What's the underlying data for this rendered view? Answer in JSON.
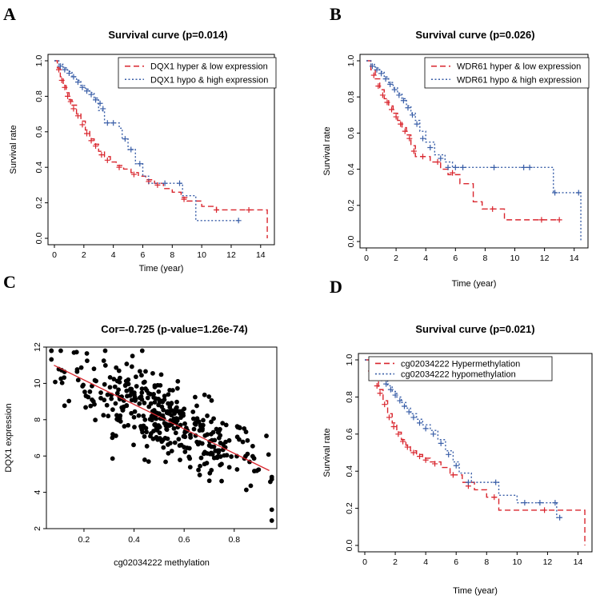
{
  "colors": {
    "red": "#d9262e",
    "blue": "#3a5fa8",
    "black": "#000000",
    "fit": "#d9262e"
  },
  "chart_data": [
    {
      "id": "A",
      "label": "A",
      "type": "line",
      "subtype": "kaplan-meier",
      "title": "Survival curve (p=0.014)",
      "xlabel": "Time (year)",
      "ylabel": "Survival rate",
      "xlim": [
        0,
        14.5
      ],
      "ylim": [
        0,
        1.0
      ],
      "xticks": [
        0,
        2,
        4,
        6,
        8,
        10,
        12,
        14
      ],
      "yticks": [
        0.0,
        0.2,
        0.4,
        0.6,
        0.8,
        1.0
      ],
      "legend_position": "top-right",
      "series": [
        {
          "name": "DQX1 hyper & low expression",
          "color": "red",
          "dash": "dashed",
          "x": [
            0,
            0.2,
            0.4,
            0.6,
            0.8,
            1.0,
            1.2,
            1.5,
            1.8,
            2.1,
            2.4,
            2.7,
            3.0,
            3.4,
            3.8,
            4.2,
            4.7,
            5.2,
            5.7,
            6.2,
            6.8,
            7.4,
            8.0,
            8.6,
            9.0,
            10.0,
            11.0,
            14.4,
            14.45
          ],
          "y": [
            1.0,
            0.96,
            0.91,
            0.86,
            0.82,
            0.78,
            0.75,
            0.7,
            0.66,
            0.61,
            0.56,
            0.53,
            0.49,
            0.46,
            0.43,
            0.41,
            0.39,
            0.37,
            0.35,
            0.33,
            0.31,
            0.28,
            0.26,
            0.23,
            0.21,
            0.18,
            0.16,
            0.16,
            0.0
          ],
          "censor_x": [
            0.3,
            0.5,
            0.7,
            0.9,
            1.1,
            1.3,
            1.6,
            1.9,
            2.2,
            2.5,
            2.8,
            3.2,
            3.6,
            4.4,
            5.4,
            6.4,
            7.0,
            8.8,
            11.0,
            13.2
          ],
          "censor_y": [
            0.95,
            0.89,
            0.85,
            0.8,
            0.77,
            0.73,
            0.69,
            0.64,
            0.59,
            0.55,
            0.52,
            0.47,
            0.44,
            0.4,
            0.36,
            0.32,
            0.3,
            0.22,
            0.16,
            0.16
          ]
        },
        {
          "name": "DQX1 hypo & high expression",
          "color": "blue",
          "dash": "dotted",
          "x": [
            0,
            0.3,
            0.6,
            0.9,
            1.2,
            1.5,
            1.8,
            2.1,
            2.4,
            2.7,
            3.0,
            3.4,
            4.4,
            4.6,
            5.0,
            5.5,
            6.0,
            6.4,
            8.7,
            9.0,
            9.6,
            12.5
          ],
          "y": [
            1.0,
            0.98,
            0.96,
            0.94,
            0.91,
            0.89,
            0.86,
            0.84,
            0.82,
            0.79,
            0.72,
            0.65,
            0.62,
            0.56,
            0.5,
            0.42,
            0.35,
            0.31,
            0.24,
            0.24,
            0.1,
            0.1
          ],
          "censor_x": [
            0.4,
            0.7,
            1.0,
            1.3,
            1.6,
            1.9,
            2.2,
            2.5,
            2.8,
            3.1,
            3.3,
            3.6,
            4.0,
            4.8,
            5.2,
            5.8,
            7.5,
            8.5,
            12.5
          ],
          "censor_y": [
            0.97,
            0.95,
            0.93,
            0.91,
            0.88,
            0.85,
            0.83,
            0.81,
            0.78,
            0.76,
            0.73,
            0.65,
            0.65,
            0.56,
            0.5,
            0.42,
            0.31,
            0.31,
            0.1
          ]
        }
      ]
    },
    {
      "id": "B",
      "label": "B",
      "type": "line",
      "subtype": "kaplan-meier",
      "title": "Survival curve (p=0.026)",
      "xlabel": "Time (year)",
      "ylabel": "Survival rate",
      "xlim": [
        0,
        14.5
      ],
      "ylim": [
        0,
        1.0
      ],
      "xticks": [
        0,
        2,
        4,
        6,
        8,
        10,
        12,
        14
      ],
      "yticks": [
        0.0,
        0.2,
        0.4,
        0.6,
        0.8,
        1.0
      ],
      "legend_position": "top-right",
      "series": [
        {
          "name": "WDR61 hyper & low expression",
          "color": "red",
          "dash": "dashed",
          "x": [
            0,
            0.3,
            0.6,
            0.9,
            1.2,
            1.5,
            1.8,
            2.1,
            2.4,
            2.7,
            3.0,
            3.3,
            4.3,
            5.0,
            5.5,
            6.3,
            7.2,
            7.8,
            9.3,
            13.0
          ],
          "y": [
            1.0,
            0.95,
            0.9,
            0.84,
            0.79,
            0.75,
            0.71,
            0.67,
            0.63,
            0.59,
            0.53,
            0.47,
            0.44,
            0.4,
            0.37,
            0.32,
            0.22,
            0.18,
            0.12,
            0.12
          ],
          "censor_x": [
            0.5,
            0.8,
            1.1,
            1.4,
            1.7,
            2.0,
            2.3,
            2.6,
            2.9,
            3.2,
            3.8,
            4.8,
            5.8,
            8.5,
            11.8,
            13.0
          ],
          "censor_y": [
            0.92,
            0.86,
            0.81,
            0.77,
            0.73,
            0.69,
            0.65,
            0.61,
            0.57,
            0.5,
            0.47,
            0.44,
            0.38,
            0.18,
            0.12,
            0.12
          ]
        },
        {
          "name": "WDR61 hypo & high expression",
          "color": "blue",
          "dash": "dotted",
          "x": [
            0,
            0.3,
            0.6,
            0.9,
            1.2,
            1.5,
            1.8,
            2.1,
            2.4,
            2.7,
            3.0,
            3.3,
            3.6,
            4.0,
            4.6,
            5.3,
            5.8,
            12.6,
            14.4,
            14.45
          ],
          "y": [
            1.0,
            0.98,
            0.96,
            0.94,
            0.91,
            0.88,
            0.85,
            0.82,
            0.79,
            0.75,
            0.71,
            0.67,
            0.61,
            0.55,
            0.48,
            0.44,
            0.41,
            0.27,
            0.27,
            0.0
          ],
          "censor_x": [
            0.4,
            0.7,
            1.0,
            1.3,
            1.6,
            1.9,
            2.2,
            2.5,
            2.8,
            3.1,
            3.4,
            3.8,
            4.3,
            5.0,
            5.5,
            6.0,
            6.5,
            8.6,
            10.6,
            11.0,
            12.7,
            14.3
          ],
          "censor_y": [
            0.97,
            0.95,
            0.93,
            0.9,
            0.87,
            0.84,
            0.81,
            0.78,
            0.74,
            0.7,
            0.65,
            0.57,
            0.52,
            0.46,
            0.41,
            0.41,
            0.41,
            0.41,
            0.41,
            0.41,
            0.27,
            0.27
          ]
        }
      ]
    },
    {
      "id": "C",
      "label": "C",
      "type": "scatter",
      "title": "Cor=-0.725 (p-value=1.26e-74)",
      "xlabel": "cg02034222 methylation",
      "ylabel": "DQX1 expression",
      "xlim": [
        0.05,
        0.97
      ],
      "ylim": [
        2,
        12
      ],
      "xticks": [
        0.2,
        0.4,
        0.6,
        0.8
      ],
      "yticks": [
        2,
        4,
        6,
        8,
        10,
        12
      ],
      "n_points": 400,
      "fit_line": {
        "x": [
          0.08,
          0.94
        ],
        "y": [
          11.0,
          5.2
        ]
      },
      "grid": false
    },
    {
      "id": "D",
      "label": "D",
      "type": "line",
      "subtype": "kaplan-meier",
      "title": "Survival curve (p=0.021)",
      "xlabel": "Time (year)",
      "ylabel": "Survival rate",
      "xlim": [
        0,
        14.5
      ],
      "ylim": [
        0,
        1.0
      ],
      "xticks": [
        0,
        2,
        4,
        6,
        8,
        10,
        12,
        14
      ],
      "yticks": [
        0.0,
        0.2,
        0.4,
        0.6,
        0.8,
        1.0
      ],
      "legend_position": "top-right",
      "series": [
        {
          "name": "cg02034222 Hypermethylation",
          "color": "red",
          "dash": "dashed",
          "x": [
            0,
            0.3,
            0.6,
            0.9,
            1.2,
            1.5,
            1.8,
            2.1,
            2.4,
            2.7,
            3.0,
            3.4,
            3.8,
            4.3,
            5.0,
            5.6,
            6.4,
            7.2,
            8.0,
            8.8,
            14.4,
            14.45
          ],
          "y": [
            1.0,
            0.96,
            0.9,
            0.84,
            0.78,
            0.71,
            0.66,
            0.61,
            0.57,
            0.54,
            0.51,
            0.49,
            0.47,
            0.45,
            0.42,
            0.38,
            0.34,
            0.3,
            0.26,
            0.19,
            0.19,
            0.0
          ],
          "censor_x": [
            0.4,
            0.8,
            1.0,
            1.3,
            1.6,
            1.9,
            2.2,
            2.5,
            2.8,
            3.2,
            3.6,
            4.0,
            4.6,
            5.8,
            6.8,
            8.5,
            11.8
          ],
          "censor_y": [
            0.94,
            0.86,
            0.82,
            0.76,
            0.69,
            0.64,
            0.6,
            0.56,
            0.53,
            0.5,
            0.48,
            0.46,
            0.44,
            0.38,
            0.32,
            0.26,
            0.19
          ]
        },
        {
          "name": "cg02034222 hypomethylation",
          "color": "blue",
          "dash": "dotted",
          "x": [
            0,
            0.3,
            0.6,
            0.9,
            1.2,
            1.5,
            1.8,
            2.1,
            2.4,
            2.7,
            3.0,
            3.4,
            3.8,
            4.3,
            4.8,
            5.3,
            5.8,
            6.2,
            7.0,
            8.8,
            10.0,
            12.6,
            13.0
          ],
          "y": [
            1.0,
            0.97,
            0.95,
            0.92,
            0.89,
            0.86,
            0.83,
            0.8,
            0.77,
            0.74,
            0.71,
            0.68,
            0.65,
            0.62,
            0.57,
            0.51,
            0.45,
            0.39,
            0.34,
            0.27,
            0.23,
            0.15,
            0.15
          ],
          "censor_x": [
            0.5,
            0.8,
            1.1,
            1.4,
            1.7,
            2.0,
            2.3,
            2.6,
            2.9,
            3.2,
            3.6,
            4.0,
            4.5,
            5.0,
            5.5,
            6.0,
            6.8,
            8.6,
            10.5,
            11.5,
            12.5,
            12.8
          ],
          "censor_y": [
            0.96,
            0.93,
            0.9,
            0.87,
            0.84,
            0.81,
            0.78,
            0.75,
            0.72,
            0.69,
            0.66,
            0.63,
            0.6,
            0.55,
            0.49,
            0.43,
            0.34,
            0.34,
            0.23,
            0.23,
            0.23,
            0.15
          ]
        }
      ]
    }
  ]
}
